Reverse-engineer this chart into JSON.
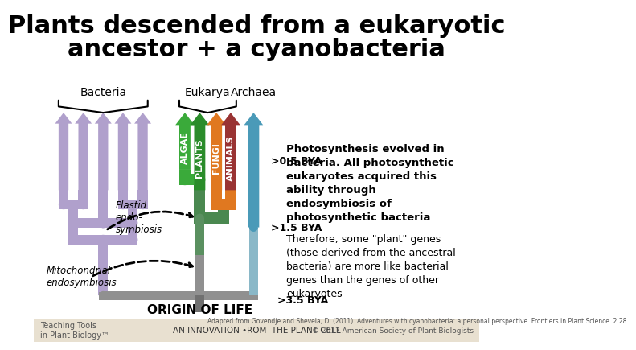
{
  "title_line1": "Plants descended from a eukaryotic",
  "title_line2": "ancestor + a cyanobacteria",
  "bg_color": "#ffffff",
  "bacteria_label": "Bacteria",
  "eukarya_label": "Eukarya",
  "archaea_label": "Archaea",
  "bacteria_color": "#b0a0cc",
  "algae_color": "#3aaa3a",
  "plants_color": "#2a8c2a",
  "fungi_color": "#e07820",
  "animals_color": "#993333",
  "archaea_color_top": "#4a9ab8",
  "archaea_color_bot": "#7ab0c0",
  "stem_gray": "#909090",
  "stem_gray2": "#707070",
  "green_stem": "#5a9060",
  "bya_labels": [
    ">0.5 BYA",
    ">1.5 BYA",
    ">3.5 BYA"
  ],
  "origin_label": "ORIGIN OF LIFE",
  "plastid_label": "Plastid\nendo-\nsymbiosis",
  "mito_label": "Mitochondrial\nendosymbiosis",
  "text1": "Photosynthesis evolved in\nbacteria. All photosynthetic\neukaryotes acquired this\nability through\nendosymbiosis of\nphotosynthetic bacteria",
  "text2": "Therefore, some \"plant\" genes\n(those derived from the ancestral\nbacteria) are more like bacterial\ngenes than the genes of other\neukaryotes",
  "bottom_text": "AN INNOVATION •ROM THE PLANT CELL",
  "citation": "Adapted from Govendje and Shevela, D. (2011). Adventures with cyanobacteria: a personal perspective. Frontiers in Plant Science. 2:28."
}
